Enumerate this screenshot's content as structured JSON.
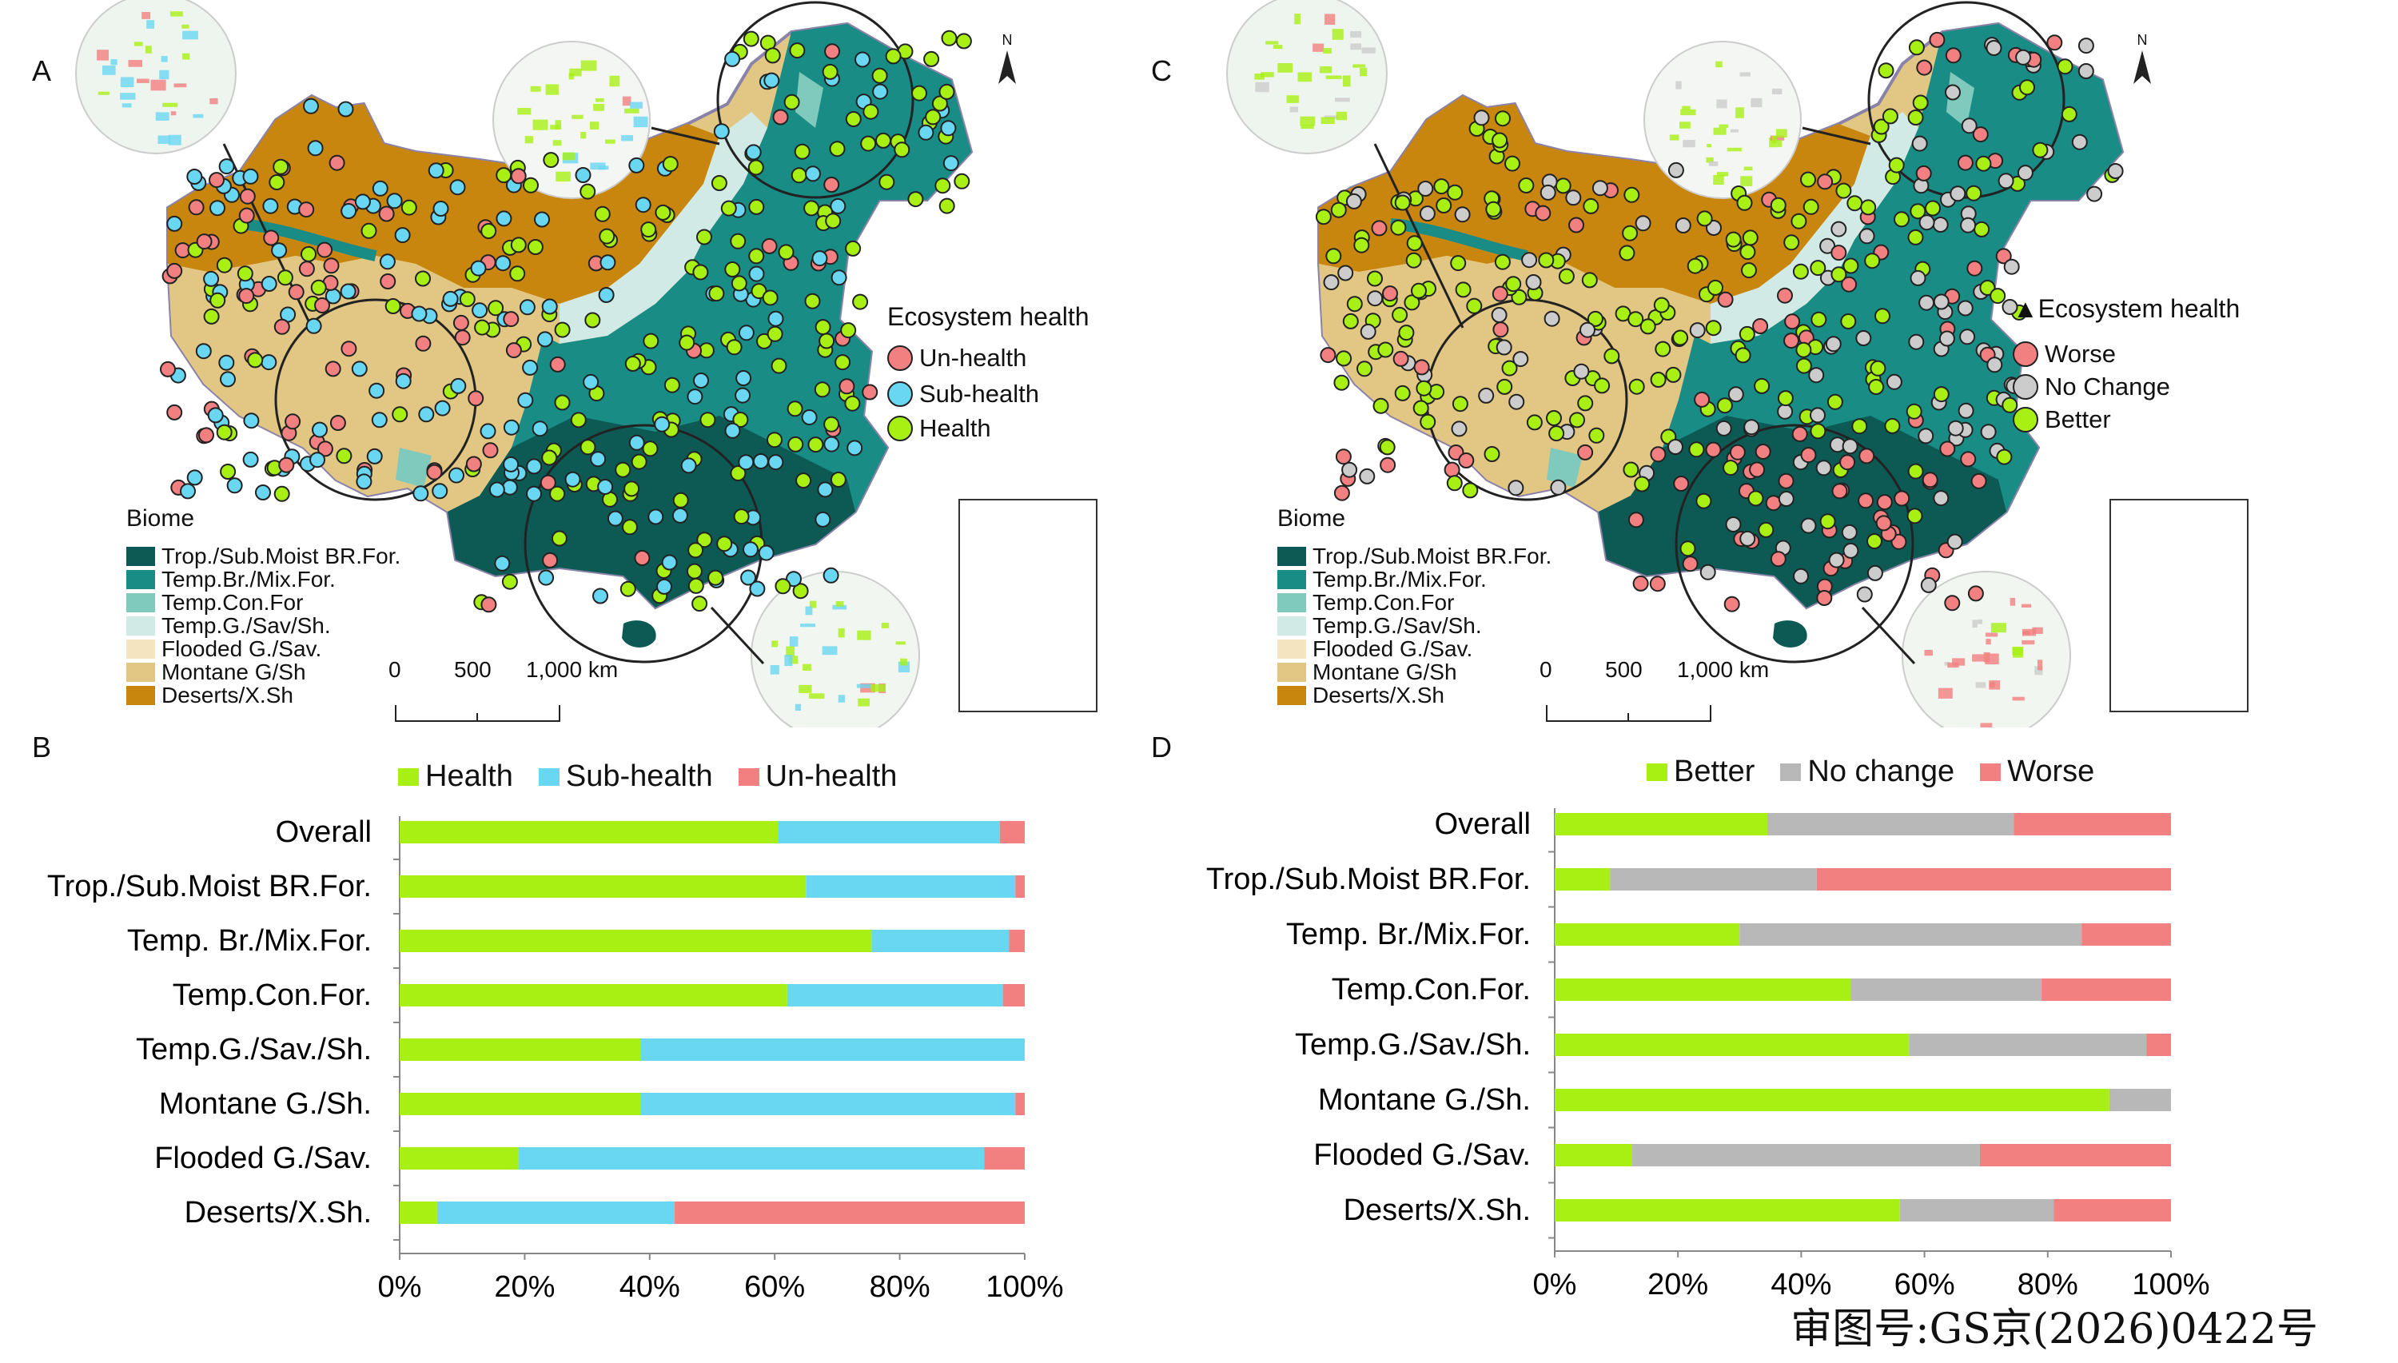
{
  "colors": {
    "health": "#a8f014",
    "subhealth": "#6ad7f2",
    "unhealth": "#f28080",
    "better": "#a8f014",
    "nochange": "#b8b8b8",
    "worse": "#f28080",
    "trop": "#0d5a54",
    "tempbr": "#1a8c86",
    "tempcon": "#7fc9bd",
    "tempg": "#d2eae6",
    "flooded": "#f4e5c0",
    "montane": "#e2c784",
    "deserts": "#c9860f"
  },
  "panelA": {
    "letter": "A",
    "north": "N",
    "legend_title": "Ecosystem health",
    "legend": [
      {
        "label": "Un-health",
        "color": "#f28080"
      },
      {
        "label": "Sub-health",
        "color": "#6ad7f2"
      },
      {
        "label": "Health",
        "color": "#a8f014"
      }
    ]
  },
  "panelC": {
    "letter": "C",
    "north": "N",
    "legend_title": "▲Ecosystem health",
    "legend": [
      {
        "label": "Worse",
        "color": "#f28080"
      },
      {
        "label": "No Change",
        "color": "#cccccc"
      },
      {
        "label": "Better",
        "color": "#a8f014"
      }
    ]
  },
  "biome": {
    "title": "Biome",
    "items": [
      {
        "label": "Trop./Sub.Moist BR.For.",
        "color": "#0d5a54"
      },
      {
        "label": "Temp.Br./Mix.For.",
        "color": "#1a8c86"
      },
      {
        "label": "Temp.Con.For",
        "color": "#7fc9bd"
      },
      {
        "label": "Temp.G./Sav/Sh.",
        "color": "#d2eae6"
      },
      {
        "label": "Flooded G./Sav.",
        "color": "#f4e5c0"
      },
      {
        "label": "Montane G/Sh",
        "color": "#e2c784"
      },
      {
        "label": "Deserts/X.Sh",
        "color": "#c9860f"
      }
    ]
  },
  "scale": {
    "labels": [
      "0",
      "500",
      "1,000 km"
    ]
  },
  "chart_data": [
    {
      "panel": "B",
      "type": "bar",
      "orientation": "horizontal",
      "stacked": true,
      "categories": [
        "Overall",
        "Trop./Sub.Moist BR.For.",
        "Temp. Br./Mix.For.",
        "Temp.Con.For.",
        "Temp.G./Sav./Sh.",
        "Montane G./Sh.",
        "Flooded G./Sav.",
        "Deserts/X.Sh."
      ],
      "series": [
        {
          "name": "Health",
          "color": "#a8f014",
          "values": [
            60.5,
            65,
            75.5,
            62,
            38.5,
            38.5,
            19,
            6
          ]
        },
        {
          "name": "Sub-health",
          "color": "#6ad7f2",
          "values": [
            35.5,
            33.5,
            22,
            34.5,
            61.5,
            60,
            74.5,
            38
          ]
        },
        {
          "name": "Un-health",
          "color": "#f28080",
          "values": [
            4,
            1.5,
            2.5,
            3.5,
            0,
            1.5,
            6.5,
            56
          ]
        }
      ],
      "xticks": [
        "0%",
        "20%",
        "40%",
        "60%",
        "80%",
        "100%"
      ],
      "xlim": [
        0,
        100
      ]
    },
    {
      "panel": "D",
      "type": "bar",
      "orientation": "horizontal",
      "stacked": true,
      "categories": [
        "Overall",
        "Trop./Sub.Moist BR.For.",
        "Temp. Br./Mix.For.",
        "Temp.Con.For.",
        "Temp.G./Sav./Sh.",
        "Montane G./Sh.",
        "Flooded G./Sav.",
        "Deserts/X.Sh."
      ],
      "series": [
        {
          "name": "Better",
          "color": "#a8f014",
          "values": [
            34.5,
            9,
            30,
            48,
            57.5,
            90,
            12.5,
            56
          ]
        },
        {
          "name": "No change",
          "color": "#b8b8b8",
          "values": [
            40,
            33.5,
            55.5,
            31,
            38.5,
            10,
            56.5,
            25
          ]
        },
        {
          "name": "Worse",
          "color": "#f28080",
          "values": [
            25.5,
            57.5,
            14.5,
            21,
            4,
            0,
            31,
            19
          ]
        }
      ],
      "xticks": [
        "0%",
        "20%",
        "40%",
        "60%",
        "80%",
        "100%"
      ],
      "xlim": [
        0,
        100
      ]
    }
  ],
  "panelB_letter": "B",
  "panelD_letter": "D",
  "approval_number": "审图号:GS京(2026)0422号"
}
